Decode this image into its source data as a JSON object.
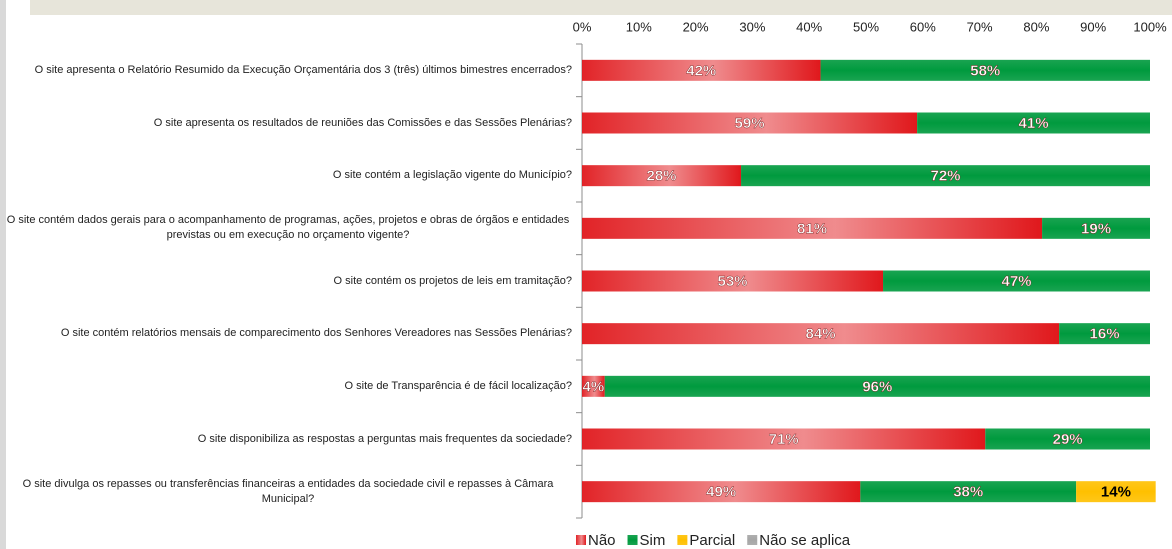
{
  "chart_data": {
    "type": "stacked-barh",
    "categories": [
      "O site apresenta o Relatório Resumido da Execução Orçamentária dos 3 (três) últimos bimestres encerrados?",
      "O site apresenta os resultados de reuniões das Comissões e das Sessões Plenárias?",
      "O site contém a legislação vigente do Município?",
      "O site contém dados gerais para o acompanhamento de programas, ações, projetos e obras de órgãos e entidades previstas ou em execução no orçamento vigente?",
      "O site contém os projetos de leis em tramitação?",
      "O site contém relatórios mensais de comparecimento dos Senhores Vereadores nas Sessões Plenárias?",
      "O site de Transparência é de fácil localização?",
      "O site disponibiliza as respostas a perguntas mais frequentes da sociedade?",
      "O site divulga os repasses ou transferências financeiras a entidades da sociedade civil e repasses à Câmara Municipal?"
    ],
    "series": [
      {
        "name": "Não",
        "color": "#e0181c",
        "values": [
          42,
          59,
          28,
          81,
          53,
          84,
          4,
          71,
          49
        ],
        "value_labels": [
          "42%",
          "59%",
          "28%",
          "81%",
          "53%",
          "84%",
          "4%",
          "71%",
          "49%"
        ]
      },
      {
        "name": "Sim",
        "color": "#009a3e",
        "values": [
          58,
          41,
          72,
          19,
          47,
          16,
          96,
          29,
          38
        ],
        "value_labels": [
          "58%",
          "41%",
          "72%",
          "19%",
          "47%",
          "16%",
          "96%",
          "29%",
          "38%"
        ]
      },
      {
        "name": "Parcial",
        "color": "#ffc000",
        "values": [
          0,
          0,
          0,
          0,
          0,
          0,
          0,
          0,
          14
        ],
        "value_labels": [
          null,
          null,
          null,
          null,
          null,
          null,
          null,
          null,
          "14%"
        ]
      },
      {
        "name": "Não se aplica",
        "color": "#a6a6a6",
        "values": [
          0,
          0,
          0,
          0,
          0,
          0,
          0,
          0,
          0
        ]
      }
    ],
    "xlim": [
      0,
      100
    ],
    "xticks": [
      {
        "value": 0,
        "label": "0%"
      },
      {
        "value": 10,
        "label": "10%"
      },
      {
        "value": 20,
        "label": "20%"
      },
      {
        "value": 30,
        "label": "30%"
      },
      {
        "value": 40,
        "label": "40%"
      },
      {
        "value": 50,
        "label": "50%"
      },
      {
        "value": 60,
        "label": "60%"
      },
      {
        "value": 70,
        "label": "70%"
      },
      {
        "value": 80,
        "label": "80%"
      },
      {
        "value": 90,
        "label": "90%"
      },
      {
        "value": 100,
        "label": "100%"
      }
    ],
    "legend": "bottom",
    "grid": false
  }
}
